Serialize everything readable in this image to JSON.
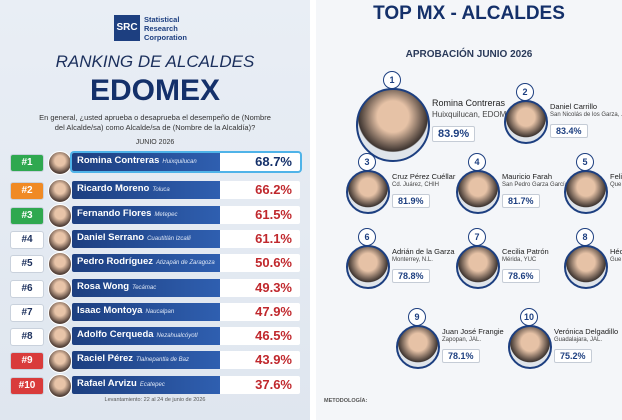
{
  "left": {
    "logo": {
      "mark": "SRC",
      "name": "Statistical Research Corporation"
    },
    "title": "RANKING DE ALCALDES",
    "subtitle": "EDOMEX",
    "question": "En general, ¿usted aprueba o desaprueba el desempeño de (Nombre del Alcalde/sa) como Alcalde/sa de (Nombre de la Alcaldía)?",
    "period": "JUNIO 2026",
    "rows": [
      {
        "rank": "#1",
        "name": "Romina Contreras",
        "place": "Huixquilucan",
        "value": "68.7%"
      },
      {
        "rank": "#2",
        "name": "Ricardo Moreno",
        "place": "Toluca",
        "value": "66.2%"
      },
      {
        "rank": "#3",
        "name": "Fernando Flores",
        "place": "Metepec",
        "value": "61.5%"
      },
      {
        "rank": "#4",
        "name": "Daniel Serrano",
        "place": "Cuautitlán Izcalli",
        "value": "61.1%"
      },
      {
        "rank": "#5",
        "name": "Pedro Rodríguez",
        "place": "Atizapán de Zaragoza",
        "value": "50.6%"
      },
      {
        "rank": "#6",
        "name": "Rosa Wong",
        "place": "Tecámac",
        "value": "49.3%"
      },
      {
        "rank": "#7",
        "name": "Isaac Montoya",
        "place": "Naucalpan",
        "value": "47.9%"
      },
      {
        "rank": "#8",
        "name": "Adolfo Cerqueda",
        "place": "Nezahualcóyotl",
        "value": "46.5%"
      },
      {
        "rank": "#9",
        "name": "Raciel Pérez",
        "place": "Tlalnepantla de Baz",
        "value": "43.9%"
      },
      {
        "rank": "#10",
        "name": "Rafael Arvizu",
        "place": "Ecatepec",
        "value": "37.6%"
      }
    ],
    "footer": "Levantamiento: 22 al 24 de junio de 2026"
  },
  "right": {
    "title": "TOP MX - ALCALDES",
    "subtitle": "APROBACIÓN JUNIO 2026",
    "cards": [
      {
        "rank": "1",
        "name": "Romina Contreras",
        "place": "Huixquilucan, EDOMEX",
        "value": "83.9%"
      },
      {
        "rank": "2",
        "name": "Daniel Carrillo",
        "place": "San Nicolás de los Garza, ...",
        "value": "83.4%"
      },
      {
        "rank": "3",
        "name": "Cruz Pérez Cuéllar",
        "place": "Cd. Juárez, CHIH",
        "value": "81.9%"
      },
      {
        "rank": "4",
        "name": "Mauricio Farah",
        "place": "San Pedro Garza García, N.L.",
        "value": "81.7%"
      },
      {
        "rank": "5",
        "name": "Felipe Mac",
        "place": "Que"
      },
      {
        "rank": "6",
        "name": "Adrián de la Garza",
        "place": "Monterrey, N.L.",
        "value": "78.8%"
      },
      {
        "rank": "7",
        "name": "Cecilia Patrón",
        "place": "Mérida, YUC",
        "value": "78.6%"
      },
      {
        "rank": "8",
        "name": "Héct",
        "place": "Gue"
      },
      {
        "rank": "9",
        "name": "Juan José Frangie",
        "place": "Zapopan, JAL.",
        "value": "78.1%"
      },
      {
        "rank": "10",
        "name": "Verónica Delgadillo",
        "place": "Guadalajara, JAL.",
        "value": "75.2%"
      }
    ],
    "footer": "METODOLOGÍA:"
  }
}
